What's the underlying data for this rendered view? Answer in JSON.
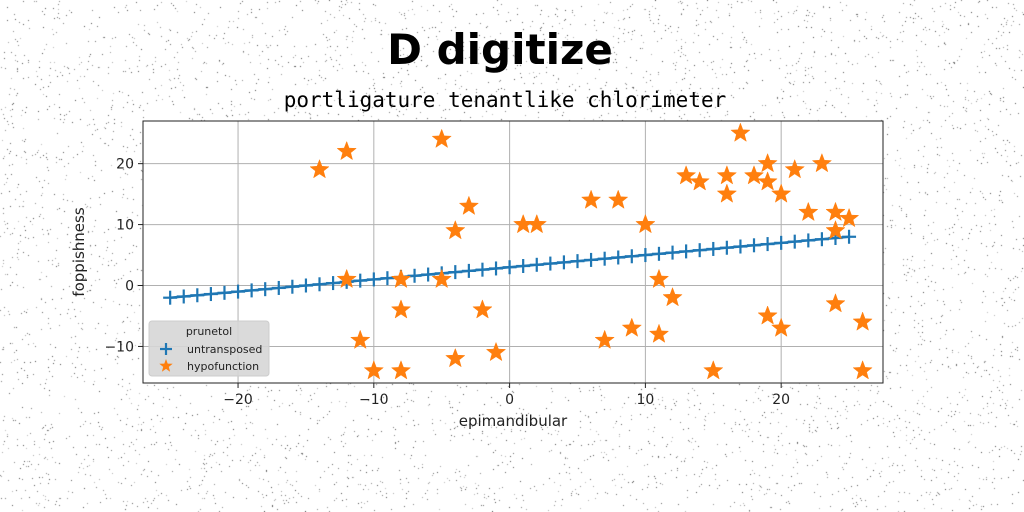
{
  "chart_data": {
    "type": "scatter",
    "suptitle": "D digitize",
    "title": "portligature tenantlike chlorimeter",
    "xlabel": "epimandibular",
    "ylabel": "foppishness",
    "xlim": [
      -27,
      27.5
    ],
    "ylim": [
      -16,
      27
    ],
    "xticks": [
      -20,
      -10,
      0,
      10,
      20
    ],
    "yticks": [
      -10,
      0,
      10,
      20
    ],
    "xtick_labels": [
      "−20",
      "−10",
      "0",
      "10",
      "20"
    ],
    "ytick_labels": [
      "−10",
      "0",
      "10",
      "20"
    ],
    "grid": true,
    "legend": {
      "title": "prunetol",
      "placement": "lower-left"
    },
    "series": [
      {
        "name": "untransposed",
        "marker": "plus",
        "line": true,
        "color": "#1f77b4",
        "x": [
          -25,
          -24,
          -23,
          -22,
          -21,
          -20,
          -19,
          -18,
          -17,
          -16,
          -15,
          -14,
          -13,
          -12,
          -11,
          -10,
          -9,
          -8,
          -7,
          -6,
          -5,
          -4,
          -3,
          -2,
          -1,
          0,
          1,
          2,
          3,
          4,
          5,
          6,
          7,
          8,
          9,
          10,
          11,
          12,
          13,
          14,
          15,
          16,
          17,
          18,
          19,
          20,
          21,
          22,
          23,
          24,
          25
        ],
        "y": [
          -2.0,
          -1.8,
          -1.6,
          -1.4,
          -1.2,
          -1.0,
          -0.8,
          -0.6,
          -0.4,
          -0.2,
          0.0,
          0.2,
          0.4,
          0.6,
          0.8,
          1.0,
          1.2,
          1.4,
          1.6,
          1.8,
          2.0,
          2.2,
          2.4,
          2.6,
          2.8,
          3.0,
          3.2,
          3.4,
          3.6,
          3.8,
          4.0,
          4.2,
          4.4,
          4.6,
          4.8,
          5.0,
          5.2,
          5.4,
          5.6,
          5.8,
          6.0,
          6.2,
          6.4,
          6.6,
          6.8,
          7.0,
          7.2,
          7.4,
          7.6,
          7.8,
          8.0
        ]
      },
      {
        "name": "hypofunction",
        "marker": "star",
        "line": false,
        "color": "#ff7f0e",
        "x": [
          -14,
          -12,
          -5,
          17,
          19,
          23,
          -3,
          -4,
          1,
          2,
          6,
          8,
          10,
          13,
          14,
          16,
          16,
          18,
          19,
          20,
          21,
          22,
          24,
          25,
          24,
          -12,
          -8,
          -5,
          11,
          12,
          -2,
          -11,
          -8,
          -4,
          -1,
          7,
          9,
          11,
          19,
          20,
          24,
          26,
          -10,
          -8,
          15,
          26
        ],
        "y": [
          19,
          22,
          24,
          25,
          20,
          20,
          13,
          9,
          10,
          10,
          14,
          14,
          10,
          18,
          17,
          18,
          15,
          18,
          17,
          15,
          19,
          12,
          12,
          11,
          9,
          1,
          1,
          1,
          1,
          -2,
          -4,
          -9,
          -4,
          -12,
          -11,
          -9,
          -7,
          -8,
          -5,
          -7,
          -3,
          -6,
          -14,
          -14,
          -14,
          -14
        ]
      }
    ]
  }
}
